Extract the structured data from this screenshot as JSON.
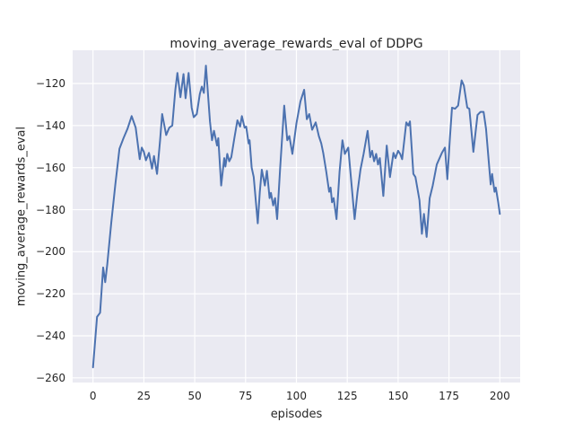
{
  "figure": {
    "background": "#ffffff"
  },
  "chart_data": {
    "type": "line",
    "title": "moving_average_rewards_eval of DDPG",
    "xlabel": "episodes",
    "ylabel": "moving_average_rewards_eval",
    "legend": "none",
    "grid": true,
    "plot_bg_color": "#eaeaf2",
    "grid_color": "#ffffff",
    "line_color": "#4c72b0",
    "text_color": "#262626",
    "xlim": [
      -10,
      210
    ],
    "ylim": [
      -262.2,
      -104.2
    ],
    "xtick_values": [
      0,
      25,
      50,
      75,
      100,
      125,
      150,
      175,
      200
    ],
    "xtick_labels": [
      "0",
      "25",
      "50",
      "75",
      "100",
      "125",
      "150",
      "175",
      "200"
    ],
    "ytick_values": [
      -260,
      -240,
      -220,
      -200,
      -180,
      -160,
      -140,
      -120
    ],
    "ytick_labels": [
      "−260",
      "−240",
      "−220",
      "−200",
      "−180",
      "−160",
      "−140",
      "−120"
    ],
    "series": [
      {
        "name": "moving_average_rewards_eval",
        "points": [
          [
            0,
            -255
          ],
          [
            2,
            -231
          ],
          [
            3.5,
            -229
          ],
          [
            5,
            -207.5
          ],
          [
            6,
            -214.5
          ],
          [
            7,
            -206
          ],
          [
            9,
            -186
          ],
          [
            11,
            -168
          ],
          [
            13,
            -151
          ],
          [
            15,
            -146
          ],
          [
            17,
            -141.5
          ],
          [
            19,
            -135.5
          ],
          [
            21,
            -141
          ],
          [
            23,
            -156
          ],
          [
            24,
            -150.5
          ],
          [
            25,
            -152.5
          ],
          [
            26,
            -156.5
          ],
          [
            27.5,
            -153
          ],
          [
            29,
            -160.5
          ],
          [
            30,
            -154.5
          ],
          [
            31.5,
            -163
          ],
          [
            33,
            -147
          ],
          [
            34,
            -134.5
          ],
          [
            36,
            -144.5
          ],
          [
            37.5,
            -141
          ],
          [
            39,
            -140
          ],
          [
            40.5,
            -123
          ],
          [
            41.5,
            -115
          ],
          [
            43,
            -126.5
          ],
          [
            44.5,
            -115.5
          ],
          [
            45.5,
            -127
          ],
          [
            47,
            -115
          ],
          [
            48.5,
            -131.5
          ],
          [
            49.5,
            -136
          ],
          [
            51,
            -134.5
          ],
          [
            52.5,
            -125
          ],
          [
            53.5,
            -121.5
          ],
          [
            54.5,
            -124.5
          ],
          [
            55.5,
            -111.5
          ],
          [
            57.5,
            -138
          ],
          [
            58.5,
            -147
          ],
          [
            59.5,
            -142.5
          ],
          [
            61,
            -149.5
          ],
          [
            61.6,
            -146
          ],
          [
            63,
            -168.5
          ],
          [
            64.5,
            -155.5
          ],
          [
            65.1,
            -159.5
          ],
          [
            66,
            -153.5
          ],
          [
            67,
            -157
          ],
          [
            68,
            -155
          ],
          [
            69.5,
            -146
          ],
          [
            71,
            -137.5
          ],
          [
            72.3,
            -140.5
          ],
          [
            73.2,
            -135.5
          ],
          [
            74.5,
            -141
          ],
          [
            75.3,
            -140.5
          ],
          [
            76.5,
            -148.5
          ],
          [
            77,
            -147
          ],
          [
            78,
            -160
          ],
          [
            79,
            -164.5
          ],
          [
            81,
            -186.5
          ],
          [
            82,
            -171.5
          ],
          [
            83,
            -161
          ],
          [
            84.5,
            -168.5
          ],
          [
            85.5,
            -161.5
          ],
          [
            86.8,
            -174.5
          ],
          [
            87.5,
            -172
          ],
          [
            88.6,
            -178
          ],
          [
            89.5,
            -174.5
          ],
          [
            90.5,
            -184.5
          ],
          [
            92,
            -160
          ],
          [
            94,
            -130.5
          ],
          [
            95.5,
            -147
          ],
          [
            96.5,
            -145
          ],
          [
            98,
            -153.5
          ],
          [
            100,
            -139
          ],
          [
            102,
            -128.5
          ],
          [
            103.8,
            -123
          ],
          [
            105.1,
            -137
          ],
          [
            106.3,
            -134.5
          ],
          [
            107.7,
            -142
          ],
          [
            109.5,
            -138.5
          ],
          [
            111,
            -145
          ],
          [
            112.2,
            -148.5
          ],
          [
            113.2,
            -153
          ],
          [
            114.7,
            -162
          ],
          [
            116.1,
            -171.5
          ],
          [
            116.8,
            -169.5
          ],
          [
            117.5,
            -176.5
          ],
          [
            118.3,
            -174.5
          ],
          [
            119.7,
            -184.5
          ],
          [
            121.2,
            -162
          ],
          [
            122.6,
            -147
          ],
          [
            123.8,
            -153.5
          ],
          [
            125.5,
            -150.5
          ],
          [
            128.6,
            -184.5
          ],
          [
            130,
            -172
          ],
          [
            131.5,
            -161
          ],
          [
            133,
            -153.5
          ],
          [
            135,
            -142.5
          ],
          [
            136.3,
            -155
          ],
          [
            137.2,
            -152
          ],
          [
            138.2,
            -157
          ],
          [
            139.2,
            -153.5
          ],
          [
            140.1,
            -158.5
          ],
          [
            141,
            -155.5
          ],
          [
            142.7,
            -173.5
          ],
          [
            144.4,
            -149.5
          ],
          [
            146,
            -164.5
          ],
          [
            147.7,
            -153
          ],
          [
            148.7,
            -155.5
          ],
          [
            150,
            -152
          ],
          [
            151,
            -153.5
          ],
          [
            152,
            -156
          ],
          [
            154,
            -138.5
          ],
          [
            155,
            -140
          ],
          [
            155.8,
            -138
          ],
          [
            157.5,
            -163
          ],
          [
            158.5,
            -164.5
          ],
          [
            160.5,
            -175.5
          ],
          [
            161.7,
            -191.5
          ],
          [
            162.7,
            -182
          ],
          [
            164,
            -193
          ],
          [
            165.5,
            -174.5
          ],
          [
            167,
            -168.5
          ],
          [
            169,
            -158.5
          ],
          [
            171.5,
            -153
          ],
          [
            173,
            -150.5
          ],
          [
            174.2,
            -165.5
          ],
          [
            175.5,
            -145.5
          ],
          [
            176.5,
            -131.5
          ],
          [
            178,
            -132
          ],
          [
            179.5,
            -130.5
          ],
          [
            181.2,
            -118.5
          ],
          [
            182.3,
            -121
          ],
          [
            184,
            -131.5
          ],
          [
            185,
            -132
          ],
          [
            187,
            -152.5
          ],
          [
            189,
            -135
          ],
          [
            190.5,
            -133.5
          ],
          [
            192,
            -133.5
          ],
          [
            193.2,
            -141.5
          ],
          [
            195.5,
            -168
          ],
          [
            196.2,
            -163
          ],
          [
            197.4,
            -171.5
          ],
          [
            198,
            -169.5
          ],
          [
            199.2,
            -176.5
          ],
          [
            200,
            -182
          ]
        ]
      }
    ]
  }
}
